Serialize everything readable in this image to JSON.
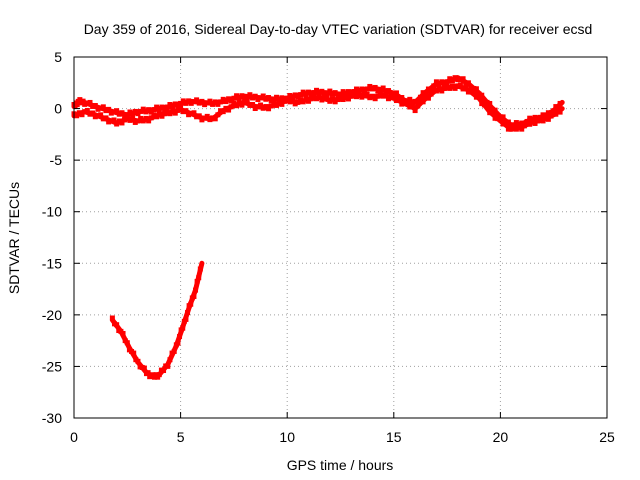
{
  "chart_data": {
    "type": "scatter",
    "title": "Day 359 of 2016, Sidereal Day-to-day VTEC variation (SDTVAR) for receiver ecsd",
    "xlabel": "GPS time / hours",
    "ylabel": "SDTVAR / TECUs",
    "xlim": [
      0,
      25
    ],
    "ylim": [
      -30,
      5
    ],
    "xticks": [
      0,
      5,
      10,
      15,
      20,
      25
    ],
    "yticks": [
      5,
      0,
      -5,
      -10,
      -15,
      -20,
      -25,
      -30
    ],
    "grid": true,
    "series": [
      {
        "name": "SDTVAR",
        "color": "#ff0000",
        "tracks": [
          [
            [
              0,
              0.2
            ],
            [
              0.2,
              0.7
            ],
            [
              0.5,
              0.6
            ],
            [
              1.0,
              0.2
            ],
            [
              1.5,
              -0.1
            ],
            [
              2.0,
              -0.4
            ],
            [
              2.5,
              -0.6
            ],
            [
              3.0,
              -0.3
            ],
            [
              3.5,
              -0.2
            ],
            [
              4.0,
              0.0
            ],
            [
              4.5,
              0.2
            ],
            [
              5.0,
              0.5
            ],
            [
              5.5,
              0.7
            ],
            [
              6.0,
              0.6
            ],
            [
              6.5,
              0.5
            ],
            [
              7.0,
              0.7
            ],
            [
              7.5,
              1.0
            ],
            [
              8.0,
              1.2
            ],
            [
              8.5,
              1.1
            ],
            [
              9.0,
              1.0
            ],
            [
              9.5,
              0.9
            ],
            [
              10.0,
              1.0
            ],
            [
              10.5,
              1.3
            ],
            [
              11.0,
              1.5
            ],
            [
              11.5,
              1.6
            ],
            [
              12.0,
              1.5
            ],
            [
              12.5,
              1.4
            ],
            [
              13.0,
              1.6
            ],
            [
              13.5,
              1.8
            ],
            [
              14.0,
              2.0
            ],
            [
              14.5,
              1.8
            ],
            [
              15.0,
              1.5
            ],
            [
              15.5,
              0.8
            ],
            [
              16.0,
              0.6
            ],
            [
              16.5,
              1.6
            ],
            [
              17.0,
              2.4
            ],
            [
              17.5,
              2.6
            ],
            [
              18.0,
              3.0
            ],
            [
              18.5,
              2.4
            ],
            [
              19.0,
              1.5
            ],
            [
              19.5,
              0.3
            ],
            [
              20.0,
              -0.8
            ],
            [
              20.5,
              -1.6
            ],
            [
              21.0,
              -1.5
            ],
            [
              21.5,
              -1.0
            ],
            [
              22.0,
              -0.8
            ],
            [
              22.5,
              -0.2
            ],
            [
              22.9,
              0.6
            ]
          ],
          [
            [
              0,
              -0.7
            ],
            [
              0.5,
              -0.3
            ],
            [
              1.0,
              -0.6
            ],
            [
              1.5,
              -1.0
            ],
            [
              2.0,
              -1.4
            ],
            [
              2.5,
              -1.0
            ],
            [
              3.0,
              -1.2
            ],
            [
              3.5,
              -1.0
            ],
            [
              4.0,
              -0.6
            ],
            [
              4.5,
              -0.4
            ],
            [
              5.0,
              -0.1
            ],
            [
              5.5,
              -0.5
            ],
            [
              6.0,
              -0.9
            ],
            [
              6.5,
              -1.0
            ],
            [
              7.0,
              -0.2
            ],
            [
              7.5,
              0.3
            ],
            [
              8.0,
              0.6
            ],
            [
              8.5,
              0.2
            ],
            [
              9.0,
              0.1
            ],
            [
              9.5,
              0.4
            ],
            [
              10.0,
              0.8
            ],
            [
              10.5,
              0.6
            ],
            [
              11.0,
              0.9
            ],
            [
              11.5,
              1.1
            ],
            [
              12.0,
              0.8
            ],
            [
              12.5,
              0.9
            ],
            [
              13.0,
              1.2
            ],
            [
              13.5,
              1.3
            ],
            [
              14.0,
              1.1
            ],
            [
              14.5,
              1.3
            ],
            [
              15.0,
              1.0
            ],
            [
              15.5,
              0.5
            ],
            [
              16.0,
              0.0
            ],
            [
              16.5,
              1.0
            ],
            [
              17.0,
              1.8
            ],
            [
              17.5,
              2.0
            ],
            [
              18.0,
              2.2
            ],
            [
              18.5,
              1.8
            ],
            [
              19.0,
              1.0
            ],
            [
              19.5,
              -0.3
            ],
            [
              20.0,
              -1.2
            ],
            [
              20.5,
              -2.0
            ],
            [
              21.0,
              -1.8
            ],
            [
              21.5,
              -1.3
            ],
            [
              22.0,
              -1.1
            ],
            [
              22.5,
              -0.6
            ],
            [
              22.9,
              0.0
            ]
          ],
          [
            [
              1.8,
              -20.5
            ],
            [
              2.2,
              -21.6
            ],
            [
              2.6,
              -23.2
            ],
            [
              3.0,
              -24.6
            ],
            [
              3.4,
              -25.6
            ],
            [
              3.7,
              -26.0
            ],
            [
              4.0,
              -25.8
            ],
            [
              4.4,
              -24.8
            ],
            [
              4.8,
              -23.0
            ],
            [
              5.1,
              -21.2
            ],
            [
              5.4,
              -19.3
            ],
            [
              5.7,
              -17.6
            ],
            [
              6.0,
              -15.0
            ]
          ]
        ]
      }
    ]
  }
}
